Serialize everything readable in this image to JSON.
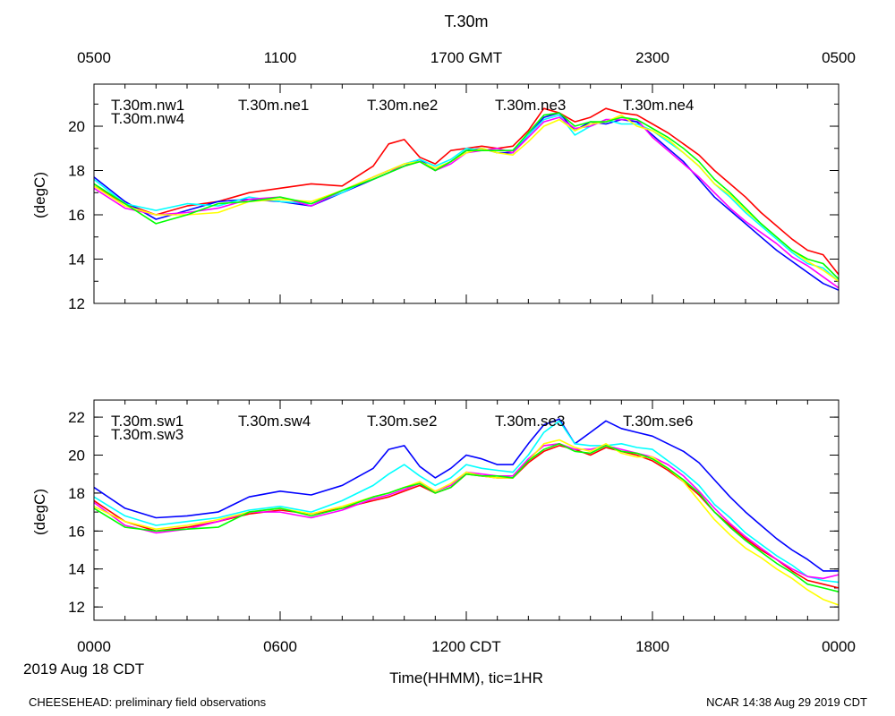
{
  "title": "T.30m",
  "top_axis_labels": [
    "0500",
    "1100",
    "1700 GMT",
    "2300",
    "0500"
  ],
  "bottom_axis_labels": [
    "0000",
    "0600",
    "1200 CDT",
    "1800",
    "0000"
  ],
  "date_label": "2019 Aug 18 CDT",
  "xlabel": "Time(HHMM), tic=1HR",
  "footer_left": "CHEESEHEAD: preliminary field observations",
  "footer_right": "NCAR 14:38 Aug 29 2019 CDT",
  "chart_data": [
    {
      "type": "line",
      "panel": "top",
      "ylabel": "(degC)",
      "ylim": [
        12,
        21.9
      ],
      "yticks": [
        12,
        14,
        16,
        18,
        20
      ],
      "xlim": [
        0,
        24
      ],
      "x_unit": "hours since 0000 CDT",
      "x": [
        0,
        1,
        2,
        3,
        4,
        5,
        6,
        7,
        8,
        9,
        9.5,
        10,
        10.5,
        11,
        11.5,
        12,
        12.5,
        13,
        13.5,
        14,
        14.5,
        15,
        15.5,
        16,
        16.5,
        17,
        17.5,
        18,
        18.5,
        19,
        19.5,
        20,
        20.5,
        21,
        21.5,
        22,
        22.5,
        23,
        23.5,
        24
      ],
      "series": [
        {
          "name": "T.30m.nw1",
          "color": "#ff0000",
          "values": [
            17.3,
            16.5,
            16.0,
            16.4,
            16.6,
            17.0,
            17.2,
            17.4,
            17.3,
            18.2,
            19.2,
            19.4,
            18.6,
            18.3,
            18.9,
            19.0,
            19.1,
            19.0,
            19.1,
            19.8,
            20.8,
            20.6,
            20.2,
            20.4,
            20.8,
            20.6,
            20.5,
            20.1,
            19.7,
            19.2,
            18.7,
            18.0,
            17.4,
            16.8,
            16.1,
            15.5,
            14.9,
            14.4,
            14.2,
            13.3
          ]
        },
        {
          "name": "T.30m.ne1",
          "color": "#0000ff",
          "values": [
            17.7,
            16.6,
            15.8,
            16.2,
            16.6,
            16.7,
            16.6,
            16.4,
            17.0,
            17.6,
            17.9,
            18.2,
            18.5,
            18.0,
            18.4,
            18.9,
            19.0,
            18.8,
            18.8,
            19.6,
            20.4,
            20.6,
            19.8,
            20.2,
            20.1,
            20.3,
            20.2,
            19.6,
            19.0,
            18.4,
            17.6,
            16.8,
            16.2,
            15.6,
            15.0,
            14.4,
            13.9,
            13.4,
            12.9,
            12.6
          ]
        },
        {
          "name": "T.30m.ne2",
          "color": "#00ffff",
          "values": [
            17.6,
            16.5,
            16.2,
            16.5,
            16.4,
            16.8,
            16.6,
            16.5,
            17.0,
            17.7,
            18.0,
            18.3,
            18.5,
            18.2,
            18.5,
            19.0,
            18.9,
            18.9,
            18.9,
            19.6,
            20.3,
            20.5,
            19.6,
            20.0,
            20.3,
            20.1,
            20.1,
            19.8,
            19.3,
            18.8,
            18.2,
            17.4,
            16.8,
            16.1,
            15.5,
            14.9,
            14.3,
            13.8,
            13.6,
            13.0
          ]
        },
        {
          "name": "T.30m.ne3",
          "color": "#ff00ff",
          "values": [
            17.2,
            16.3,
            16.0,
            16.1,
            16.3,
            16.7,
            16.8,
            16.4,
            17.1,
            17.7,
            18.0,
            18.2,
            18.4,
            18.0,
            18.3,
            18.8,
            18.9,
            19.0,
            18.8,
            19.5,
            20.2,
            20.4,
            19.9,
            20.0,
            20.3,
            20.3,
            20.3,
            19.5,
            18.9,
            18.3,
            17.7,
            17.0,
            16.3,
            15.7,
            15.2,
            14.7,
            14.1,
            13.7,
            13.2,
            12.7
          ]
        },
        {
          "name": "T.30m.ne4",
          "color": "#ffff00",
          "values": [
            17.3,
            16.4,
            16.0,
            16.0,
            16.1,
            16.6,
            16.7,
            16.6,
            17.1,
            17.7,
            18.0,
            18.3,
            18.4,
            18.1,
            18.4,
            18.8,
            19.0,
            18.8,
            18.7,
            19.3,
            20.0,
            20.3,
            19.8,
            20.1,
            20.2,
            20.5,
            20.0,
            19.8,
            19.4,
            18.8,
            18.2,
            17.4,
            16.9,
            16.2,
            15.6,
            15.0,
            14.4,
            13.9,
            13.5,
            13.0
          ]
        },
        {
          "name": "T.30m.nw4",
          "color": "#00ff00",
          "values": [
            17.4,
            16.5,
            15.6,
            16.0,
            16.5,
            16.6,
            16.8,
            16.5,
            17.1,
            17.6,
            17.9,
            18.2,
            18.4,
            18.0,
            18.4,
            18.9,
            18.9,
            18.9,
            18.9,
            19.7,
            20.5,
            20.6,
            20.0,
            20.2,
            20.2,
            20.4,
            20.3,
            19.9,
            19.5,
            19.0,
            18.4,
            17.6,
            17.0,
            16.3,
            15.6,
            15.0,
            14.4,
            14.0,
            13.8,
            13.1
          ]
        }
      ]
    },
    {
      "type": "line",
      "panel": "bottom",
      "ylabel": "(degC)",
      "ylim": [
        11.3,
        22.9
      ],
      "yticks": [
        12,
        14,
        16,
        18,
        20,
        22
      ],
      "xlim": [
        0,
        24
      ],
      "x_unit": "hours since 0000 CDT",
      "x": [
        0,
        1,
        2,
        3,
        4,
        5,
        6,
        7,
        8,
        9,
        9.5,
        10,
        10.5,
        11,
        11.5,
        12,
        12.5,
        13,
        13.5,
        14,
        14.5,
        15,
        15.5,
        16,
        16.5,
        17,
        17.5,
        18,
        18.5,
        19,
        19.5,
        20,
        20.5,
        21,
        21.5,
        22,
        22.5,
        23,
        23.5,
        24
      ],
      "series": [
        {
          "name": "T.30m.sw1",
          "color": "#ff0000",
          "values": [
            17.6,
            16.5,
            16.0,
            16.2,
            16.5,
            16.9,
            17.1,
            16.9,
            17.2,
            17.6,
            17.8,
            18.1,
            18.4,
            18.0,
            18.3,
            19.0,
            18.9,
            18.8,
            18.8,
            19.6,
            20.2,
            20.5,
            20.3,
            20.0,
            20.4,
            20.2,
            20.0,
            19.7,
            19.2,
            18.6,
            17.9,
            17.0,
            16.3,
            15.6,
            15.0,
            14.5,
            13.9,
            13.4,
            13.2,
            13.0
          ]
        },
        {
          "name": "T.30m.sw4",
          "color": "#0000ff",
          "values": [
            18.3,
            17.2,
            16.7,
            16.8,
            17.0,
            17.8,
            18.1,
            17.9,
            18.4,
            19.3,
            20.3,
            20.5,
            19.4,
            18.8,
            19.3,
            20.0,
            19.8,
            19.5,
            19.5,
            20.6,
            21.6,
            21.9,
            20.6,
            21.2,
            21.8,
            21.4,
            21.2,
            21.0,
            20.6,
            20.2,
            19.6,
            18.7,
            17.8,
            17.0,
            16.3,
            15.6,
            15.0,
            14.5,
            13.9,
            13.9
          ]
        },
        {
          "name": "T.30m.se2",
          "color": "#00ffff",
          "values": [
            17.8,
            16.8,
            16.3,
            16.5,
            16.7,
            17.1,
            17.3,
            17.0,
            17.6,
            18.4,
            19.0,
            19.5,
            18.9,
            18.4,
            18.8,
            19.5,
            19.3,
            19.2,
            19.1,
            20.0,
            21.2,
            21.8,
            20.6,
            20.5,
            20.5,
            20.6,
            20.4,
            20.3,
            19.7,
            19.1,
            18.4,
            17.4,
            16.7,
            15.9,
            15.3,
            14.7,
            14.2,
            13.6,
            13.4,
            13.3
          ]
        },
        {
          "name": "T.30m.se3",
          "color": "#ff00ff",
          "values": [
            17.5,
            16.3,
            15.9,
            16.1,
            16.5,
            17.0,
            17.0,
            16.7,
            17.1,
            17.7,
            17.9,
            18.2,
            18.5,
            18.1,
            18.4,
            19.1,
            19.0,
            18.9,
            18.9,
            19.8,
            20.5,
            20.6,
            20.3,
            20.3,
            20.5,
            20.3,
            20.1,
            19.9,
            19.5,
            18.9,
            18.1,
            17.2,
            16.4,
            15.7,
            15.1,
            14.5,
            14.0,
            13.6,
            13.5,
            13.7
          ]
        },
        {
          "name": "T.30m.se6",
          "color": "#ffff00",
          "values": [
            17.3,
            16.5,
            16.1,
            16.3,
            16.6,
            17.0,
            17.2,
            16.9,
            17.3,
            17.8,
            18.0,
            18.3,
            18.6,
            18.1,
            18.5,
            19.1,
            18.9,
            18.8,
            18.8,
            19.7,
            20.6,
            20.8,
            20.4,
            20.2,
            20.6,
            20.1,
            19.9,
            19.9,
            19.3,
            18.6,
            17.6,
            16.6,
            15.8,
            15.1,
            14.6,
            14.0,
            13.5,
            12.9,
            12.4,
            12.1
          ]
        },
        {
          "name": "T.30m.sw3",
          "color": "#00ff00",
          "values": [
            17.2,
            16.2,
            16.0,
            16.1,
            16.2,
            17.0,
            17.2,
            16.8,
            17.2,
            17.8,
            18.0,
            18.3,
            18.5,
            18.0,
            18.3,
            19.0,
            18.9,
            18.9,
            18.8,
            19.7,
            20.3,
            20.6,
            20.2,
            20.1,
            20.5,
            20.2,
            20.1,
            19.8,
            19.3,
            18.7,
            18.0,
            17.0,
            16.2,
            15.5,
            14.9,
            14.3,
            13.8,
            13.2,
            13.0,
            12.8
          ]
        }
      ]
    }
  ]
}
